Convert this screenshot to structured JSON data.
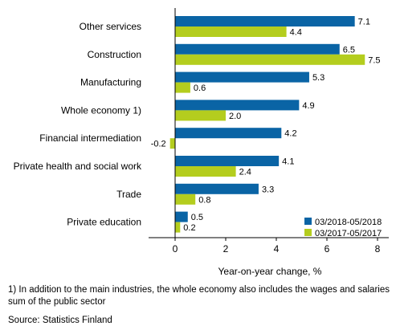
{
  "chart_data": {
    "type": "bar",
    "orientation": "horizontal",
    "categories": [
      "Other services",
      "Construction",
      "Manufacturing",
      "Whole economy 1)",
      "Financial intermediation",
      "Private health and social work",
      "Trade",
      "Private education"
    ],
    "series": [
      {
        "name": "03/2018-05/2018",
        "values": [
          7.1,
          6.5,
          5.3,
          4.9,
          4.2,
          4.1,
          3.3,
          0.5
        ],
        "color": "#0a64a5"
      },
      {
        "name": "03/2017-05/2017",
        "values": [
          4.4,
          7.5,
          0.6,
          2.0,
          -0.2,
          2.4,
          0.8,
          0.2
        ],
        "color": "#b4cd1e"
      }
    ],
    "value_labels": [
      [
        "7.1",
        "6.5",
        "5.3",
        "4.9",
        "4.2",
        "4.1",
        "3.3",
        "0.5"
      ],
      [
        "4.4",
        "7.5",
        "0.6",
        "2.0",
        "-0.2",
        "2.4",
        "0.8",
        "0.2"
      ]
    ],
    "xlabel": "Year-on-year change, %",
    "ylabel": "",
    "xlim": [
      -1,
      8.5
    ],
    "xticks": [
      0,
      2,
      4,
      6,
      8
    ],
    "grid": false,
    "legend_position": "bottom-right"
  },
  "footnote": "1) In addition to the main industries, the whole economy also includes the wages and salaries sum of the public sector",
  "source": "Source: Statistics Finland"
}
